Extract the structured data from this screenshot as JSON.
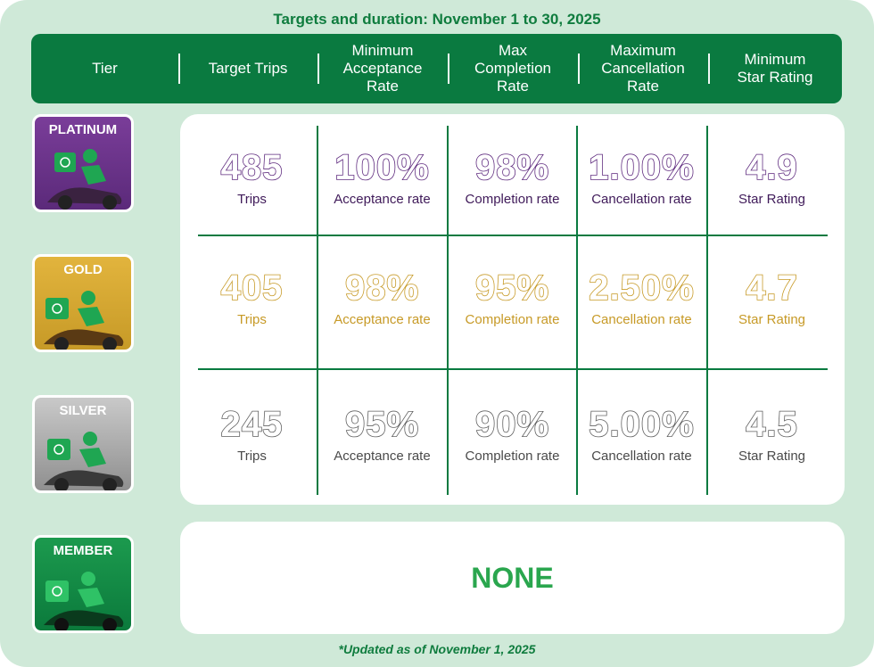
{
  "title": "Targets and duration: November 1 to 30, 2025",
  "header": {
    "tier": "Tier",
    "target_trips": "Target Trips",
    "min_acceptance": [
      "Minimum",
      "Acceptance",
      "Rate"
    ],
    "max_completion": [
      "Max",
      "Completion",
      "Rate"
    ],
    "max_cancellation": [
      "Maximum",
      "Cancellation",
      "Rate"
    ],
    "min_star": [
      "Minimum",
      "Star Rating"
    ]
  },
  "labels": {
    "trips": "Trips",
    "acceptance": "Acceptance rate",
    "completion": "Completion rate",
    "cancellation": "Cancellation rate",
    "star": "Star Rating"
  },
  "tiers": [
    {
      "name": "PLATINUM",
      "trips": "485",
      "acceptance": "100%",
      "completion": "98%",
      "cancellation": "1.00%",
      "star": "4.9"
    },
    {
      "name": "GOLD",
      "trips": "405",
      "acceptance": "98%",
      "completion": "95%",
      "cancellation": "2.50%",
      "star": "4.7"
    },
    {
      "name": "SILVER",
      "trips": "245",
      "acceptance": "95%",
      "completion": "90%",
      "cancellation": "5.00%",
      "star": "4.5"
    }
  ],
  "member": {
    "name": "MEMBER",
    "value": "NONE"
  },
  "footnote": "*Updated as of November 1, 2025",
  "colors": {
    "green_dark": "#0a7a40",
    "green_bg": "#cfe9d8",
    "platinum": "#5e2a7e",
    "gold": "#c79a27",
    "silver": "#5f5f5f",
    "member_green": "#2aa64e"
  },
  "icons": {
    "tier_badge": "delivery-rider-icon"
  }
}
